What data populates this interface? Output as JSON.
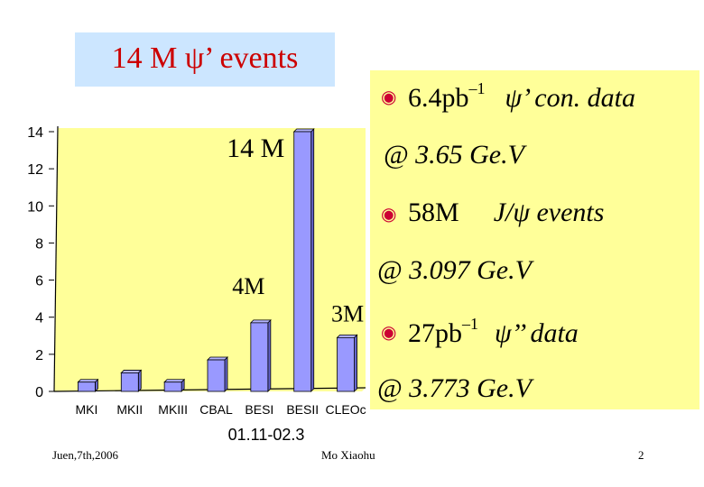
{
  "title": {
    "prefix": "14 M ",
    "psi": "ψ",
    "suffix": "’ events"
  },
  "info": {
    "line1_value": "6.4pb",
    "line1_exp": "–1",
    "line1_psi": "ψ",
    "line1_rest": "’ con. data",
    "line2": "@ 3.65 Ge.V",
    "line3_value": "58M",
    "line3_rest_prefix": "J/",
    "line3_psi": "ψ",
    "line3_rest": " events",
    "line4": "@ 3.097 Ge.V",
    "line5_value": "27pb",
    "line5_exp": "–1",
    "line5_psi": "ψ",
    "line5_rest": "’’ data",
    "line6": "@ 3.773 Ge.V",
    "bullet_symbol": "◉"
  },
  "chart_data": {
    "type": "bar",
    "categories": [
      "MKI",
      "MKII",
      "MKIII",
      "CBAL",
      "BESI",
      "BESII",
      "CLEOc"
    ],
    "values": [
      0.5,
      1.0,
      0.5,
      1.7,
      3.7,
      14.0,
      2.9
    ],
    "bar_annotations": [
      {
        "category": "BESI",
        "label": "4M"
      },
      {
        "category": "BESII",
        "label": "14 M"
      },
      {
        "category": "CLEOc",
        "label": "3M"
      }
    ],
    "ylim": [
      0,
      14
    ],
    "yticks": [
      0,
      2,
      4,
      6,
      8,
      10,
      12,
      14
    ],
    "grid": false,
    "bar_color": "#9999ff",
    "plot_bg": "#ffff99",
    "caption": "01.11-02.3"
  },
  "footer": {
    "date": "Juen,7th,2006",
    "author": "Mo Xiaohu",
    "page": "2"
  },
  "colors": {
    "title_text": "#cc0000",
    "title_bg": "#cce6ff",
    "bullet": "#cc0033",
    "panel_bg": "#ffff99"
  }
}
